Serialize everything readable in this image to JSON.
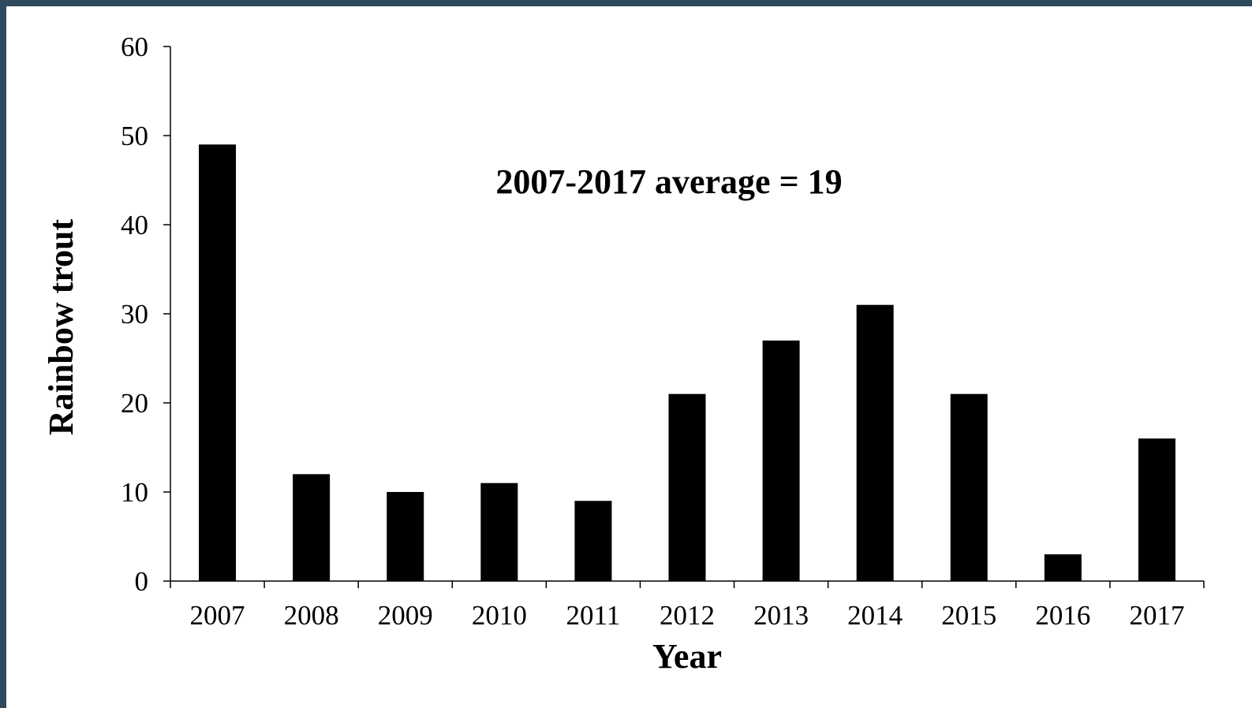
{
  "chart_data": {
    "type": "bar",
    "categories": [
      "2007",
      "2008",
      "2009",
      "2010",
      "2011",
      "2012",
      "2013",
      "2014",
      "2015",
      "2016",
      "2017"
    ],
    "values": [
      49,
      12,
      10,
      11,
      9,
      21,
      27,
      31,
      21,
      3,
      16
    ],
    "xlabel": "Year",
    "ylabel": "Rainbow trout",
    "ylim": [
      0,
      60
    ],
    "yticks": [
      "0",
      "10",
      "20",
      "30",
      "40",
      "50",
      "60"
    ],
    "annotation": "2007-2017 average = 19",
    "grid": false,
    "legend": "none",
    "colors": {
      "bar": "#000000",
      "background": "#ffffff",
      "frame": "#2e4a5c"
    }
  }
}
